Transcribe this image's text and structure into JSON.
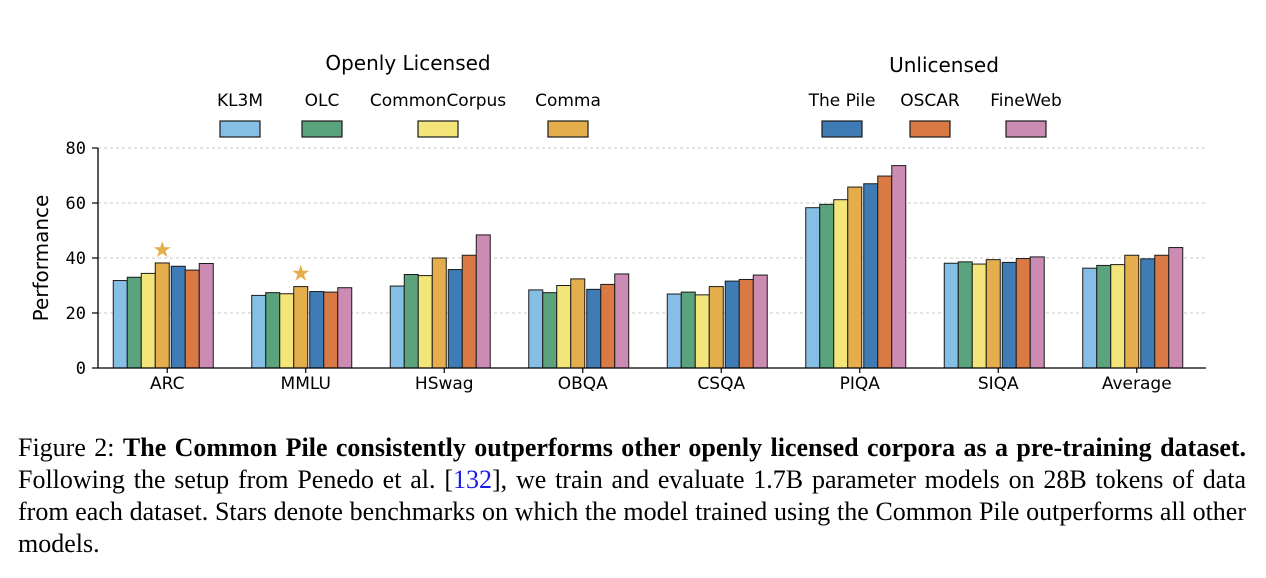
{
  "legend": {
    "groups": [
      {
        "title": "Openly Licensed",
        "series_index": [
          0,
          1,
          2,
          3
        ]
      },
      {
        "title": "Unlicensed",
        "series_index": [
          4,
          5,
          6
        ]
      }
    ]
  },
  "chart_data": {
    "type": "bar",
    "ylabel": "Performance",
    "xlabel": "",
    "ylim": [
      0,
      80
    ],
    "yticks": [
      0,
      20,
      40,
      60,
      80
    ],
    "grid": true,
    "categories": [
      "ARC",
      "MMLU",
      "HSwag",
      "OBQA",
      "CSQA",
      "PIQA",
      "SIQA",
      "Average"
    ],
    "series": [
      {
        "name": "KL3M",
        "color": "#86bfe6",
        "values": [
          31.8,
          26.4,
          29.8,
          28.4,
          26.9,
          58.3,
          38.1,
          36.3
        ]
      },
      {
        "name": "OLC",
        "color": "#5aa37c",
        "values": [
          33.0,
          27.4,
          34.0,
          27.4,
          27.6,
          59.5,
          38.6,
          37.3
        ]
      },
      {
        "name": "CommonCorpus",
        "color": "#f3e57a",
        "values": [
          34.4,
          27.0,
          33.6,
          30.0,
          26.6,
          61.2,
          37.8,
          37.6
        ]
      },
      {
        "name": "Comma",
        "color": "#e5ae4d",
        "values": [
          38.2,
          29.6,
          40.0,
          32.4,
          29.6,
          65.8,
          39.4,
          41.0
        ]
      },
      {
        "name": "The Pile",
        "color": "#3f7cb5",
        "values": [
          37.0,
          27.8,
          35.8,
          28.6,
          31.6,
          67.0,
          38.4,
          39.7
        ]
      },
      {
        "name": "OSCAR",
        "color": "#d97a45",
        "values": [
          35.6,
          27.6,
          41.0,
          30.4,
          32.2,
          69.8,
          39.8,
          41.0
        ]
      },
      {
        "name": "FineWeb",
        "color": "#cc8bb3",
        "values": [
          38.0,
          29.2,
          48.4,
          34.2,
          33.8,
          73.6,
          40.4,
          43.8
        ]
      }
    ],
    "stars": {
      "series": "Comma",
      "categories": [
        "ARC",
        "MMLU"
      ],
      "symbol": "★",
      "color": "#e5ae4d"
    }
  },
  "caption": {
    "label": "Figure 2:",
    "bold": "The Common Pile consistently outperforms other openly licensed corpora as a pre-training dataset.",
    "text_before_ref": "Following the setup from Penedo et al. [",
    "ref": "132",
    "text_after_ref": "], we train and evaluate 1.7B parameter models on 28B tokens of data from each dataset. Stars denote benchmarks on which the model trained using the Common Pile outperforms all other models."
  }
}
